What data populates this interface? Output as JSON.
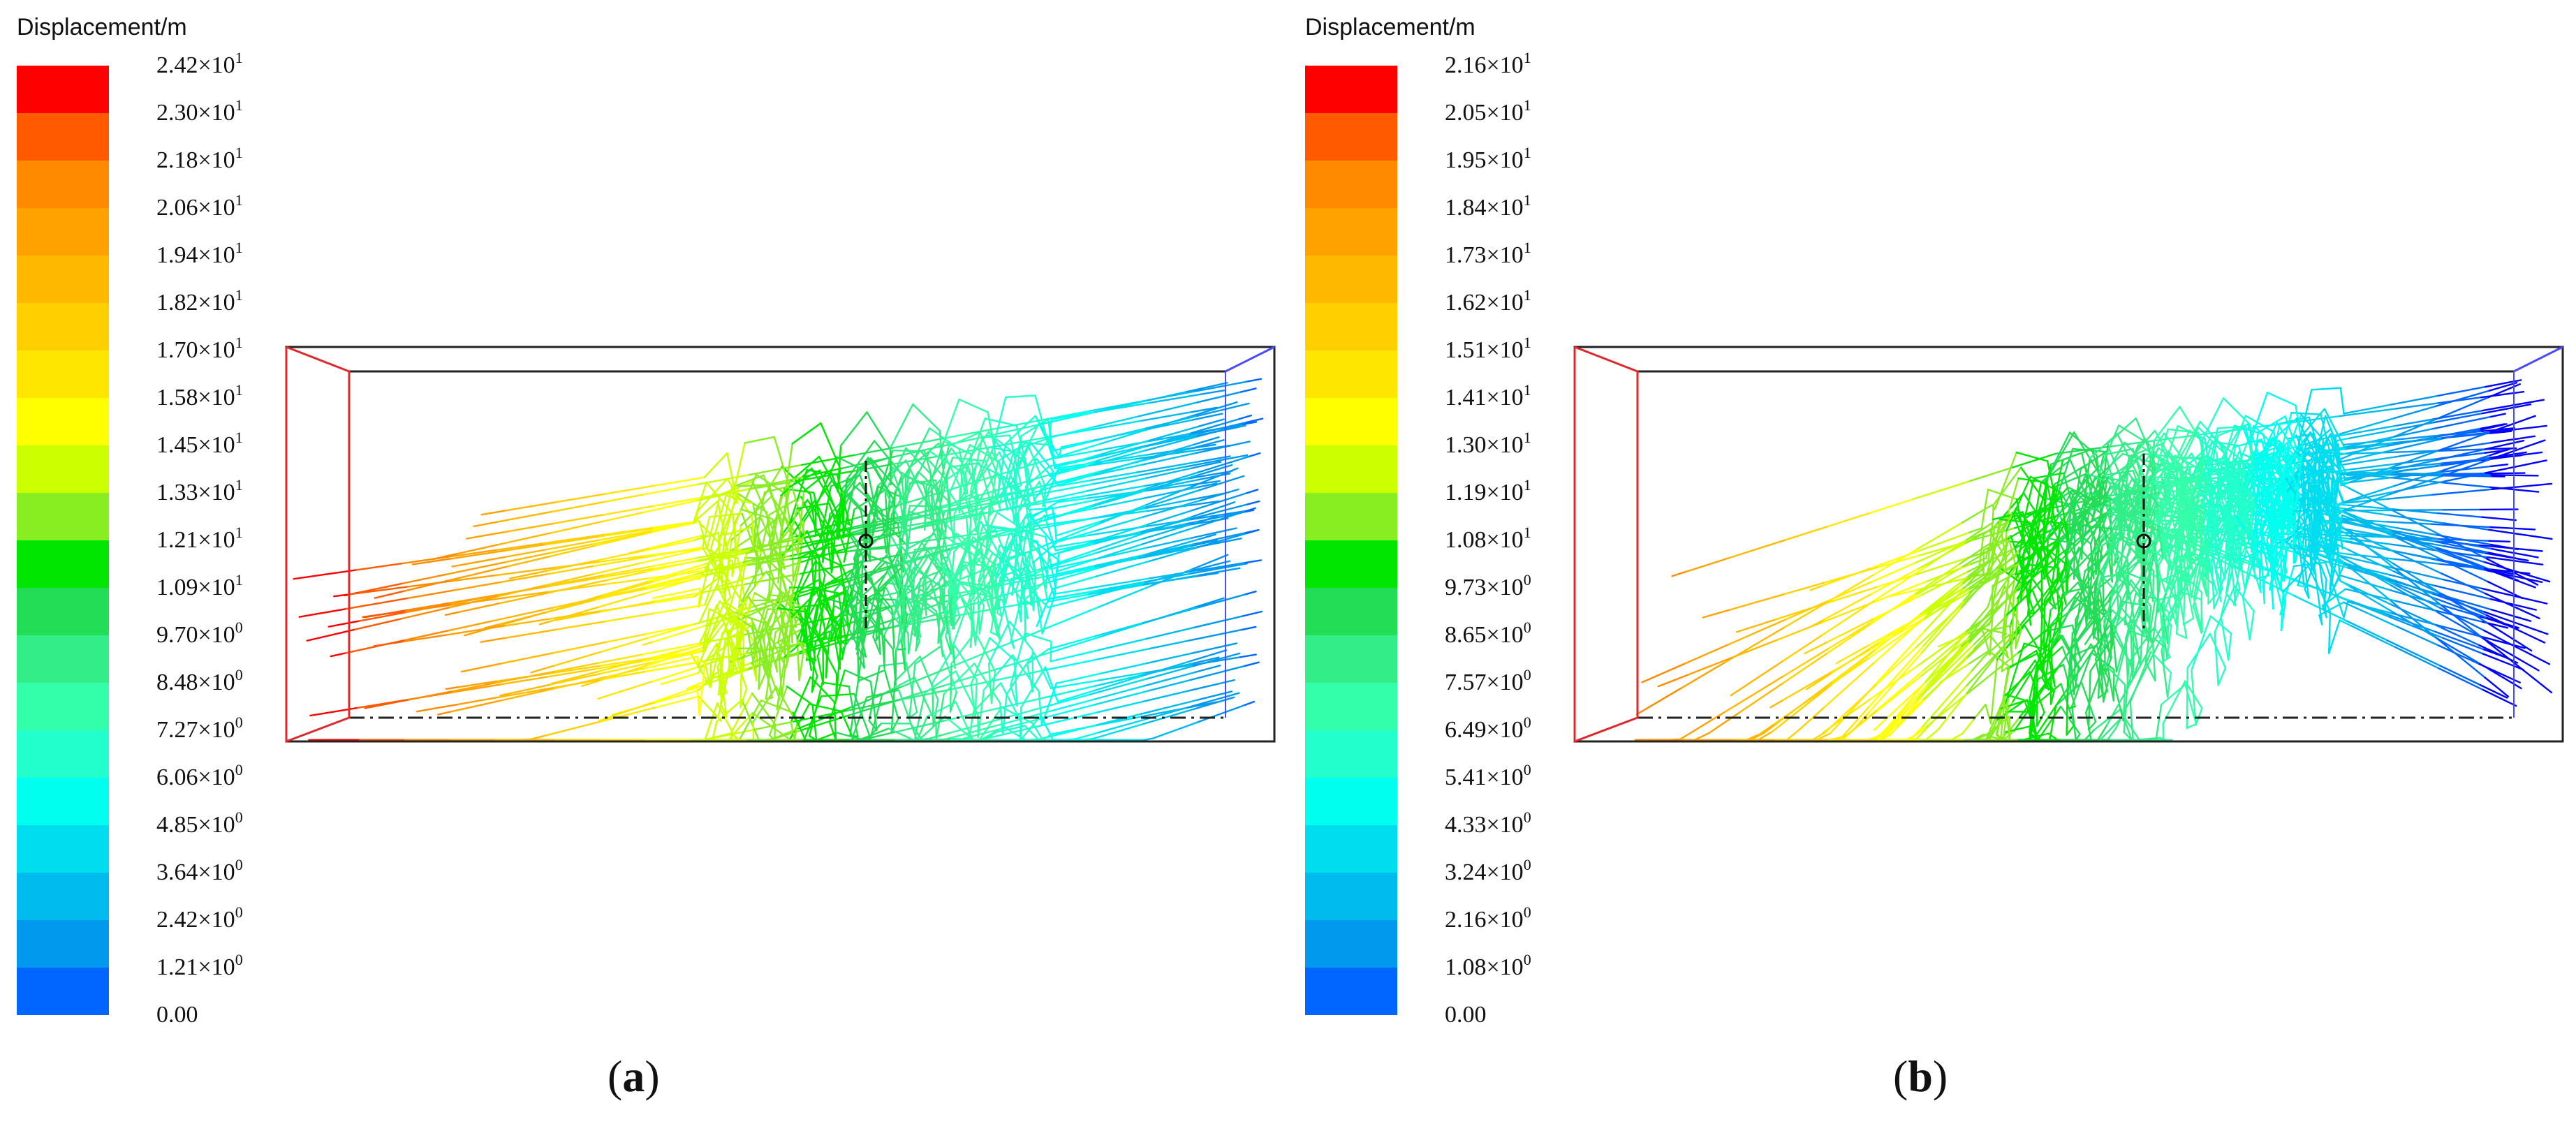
{
  "panels": [
    {
      "id": "a",
      "caption_letter": "a",
      "legend_title": "Displacement/m",
      "ticks": [
        {
          "mant": "2.42",
          "exp": "1"
        },
        {
          "mant": "2.30",
          "exp": "1"
        },
        {
          "mant": "2.18",
          "exp": "1"
        },
        {
          "mant": "2.06",
          "exp": "1"
        },
        {
          "mant": "1.94",
          "exp": "1"
        },
        {
          "mant": "1.82",
          "exp": "1"
        },
        {
          "mant": "1.70",
          "exp": "1"
        },
        {
          "mant": "1.58",
          "exp": "1"
        },
        {
          "mant": "1.45",
          "exp": "1"
        },
        {
          "mant": "1.33",
          "exp": "1"
        },
        {
          "mant": "1.21",
          "exp": "1"
        },
        {
          "mant": "1.09",
          "exp": "1"
        },
        {
          "mant": "9.70",
          "exp": "0"
        },
        {
          "mant": "8.48",
          "exp": "0"
        },
        {
          "mant": "7.27",
          "exp": "0"
        },
        {
          "mant": "6.06",
          "exp": "0"
        },
        {
          "mant": "4.85",
          "exp": "0"
        },
        {
          "mant": "3.64",
          "exp": "0"
        },
        {
          "mant": "2.42",
          "exp": "0"
        },
        {
          "mant": "1.21",
          "exp": "0"
        },
        {
          "mant": "0.00",
          "exp": ""
        }
      ]
    },
    {
      "id": "b",
      "caption_letter": "b",
      "legend_title": "Displacement/m",
      "ticks": [
        {
          "mant": "2.16",
          "exp": "1"
        },
        {
          "mant": "2.05",
          "exp": "1"
        },
        {
          "mant": "1.95",
          "exp": "1"
        },
        {
          "mant": "1.84",
          "exp": "1"
        },
        {
          "mant": "1.73",
          "exp": "1"
        },
        {
          "mant": "1.62",
          "exp": "1"
        },
        {
          "mant": "1.51",
          "exp": "1"
        },
        {
          "mant": "1.41",
          "exp": "1"
        },
        {
          "mant": "1.30",
          "exp": "1"
        },
        {
          "mant": "1.19",
          "exp": "1"
        },
        {
          "mant": "1.08",
          "exp": "1"
        },
        {
          "mant": "9.73",
          "exp": "0"
        },
        {
          "mant": "8.65",
          "exp": "0"
        },
        {
          "mant": "7.57",
          "exp": "0"
        },
        {
          "mant": "6.49",
          "exp": "0"
        },
        {
          "mant": "5.41",
          "exp": "0"
        },
        {
          "mant": "4.33",
          "exp": "0"
        },
        {
          "mant": "3.24",
          "exp": "0"
        },
        {
          "mant": "2.16",
          "exp": "0"
        },
        {
          "mant": "1.08",
          "exp": "0"
        },
        {
          "mant": "0.00",
          "exp": ""
        }
      ]
    }
  ],
  "colormap": [
    "#ff0000",
    "#ff5a00",
    "#ff8a00",
    "#ffa200",
    "#ffb800",
    "#ffcf00",
    "#ffe600",
    "#ffff00",
    "#ccff00",
    "#88ee22",
    "#00e600",
    "#22dd55",
    "#33ee88",
    "#33ffaa",
    "#22ffcc",
    "#00ffee",
    "#00ddee",
    "#00bbee",
    "#0099ee",
    "#0066ff",
    "#0000ff"
  ]
}
